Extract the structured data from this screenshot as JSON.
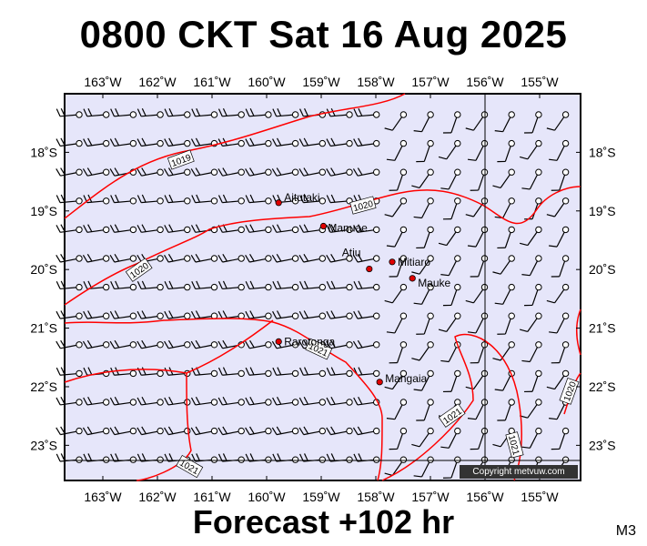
{
  "title": "0800 CKT Sat 16 Aug 2025",
  "subtitle": "Forecast +102 hr",
  "model": "M3",
  "copyright": "Copyright metvuw.com",
  "map": {
    "lon_range": [
      -163.7,
      -154.25
    ],
    "lat_range": [
      -23.6,
      -17.0
    ],
    "lon_ticks": [
      "163˚W",
      "162˚W",
      "161˚W",
      "160˚W",
      "159˚W",
      "158˚W",
      "157˚W",
      "156˚W",
      "155˚W"
    ],
    "lat_ticks": [
      "18˚S",
      "19˚S",
      "20˚S",
      "21˚S",
      "22˚S",
      "23˚S"
    ],
    "background_color": "#e6e6fa",
    "isobar_color": "#ff0000",
    "isobar_labels": [
      "1019",
      "1020",
      "1020",
      "1021",
      "1021",
      "1021",
      "1021",
      "1020"
    ],
    "places": [
      {
        "name": "Aitutaki",
        "lon": -159.78,
        "lat": -18.86
      },
      {
        "name": "Manuae",
        "lon": -158.96,
        "lat": -19.26
      },
      {
        "name": "Atiu",
        "lon": -158.12,
        "lat": -19.99
      },
      {
        "name": "Mitiaro",
        "lon": -157.7,
        "lat": -19.87
      },
      {
        "name": "Mauke",
        "lon": -157.33,
        "lat": -20.15
      },
      {
        "name": "Rarotonga",
        "lon": -159.78,
        "lat": -21.23
      },
      {
        "name": "Mangaia",
        "lon": -157.93,
        "lat": -21.92
      }
    ]
  }
}
